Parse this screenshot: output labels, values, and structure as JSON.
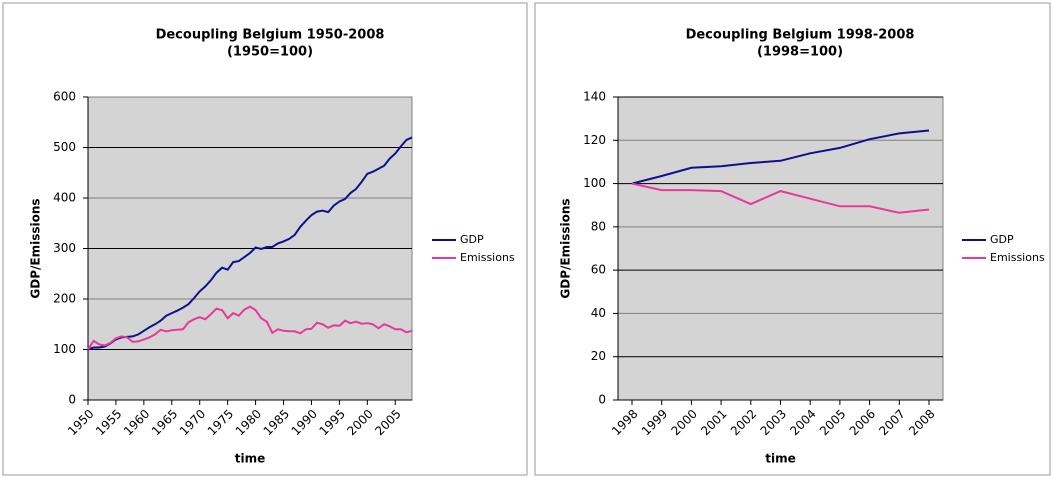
{
  "chart_data": [
    {
      "type": "line",
      "title": "Decoupling Belgium 1950-2008",
      "subtitle": "(1950=100)",
      "y_label": "GDP/Emissions",
      "x_label": "time",
      "x": [
        1950,
        1951,
        1952,
        1953,
        1954,
        1955,
        1956,
        1957,
        1958,
        1959,
        1960,
        1961,
        1962,
        1963,
        1964,
        1965,
        1966,
        1967,
        1968,
        1969,
        1970,
        1971,
        1972,
        1973,
        1974,
        1975,
        1976,
        1977,
        1978,
        1979,
        1980,
        1981,
        1982,
        1983,
        1984,
        1985,
        1986,
        1987,
        1988,
        1989,
        1990,
        1991,
        1992,
        1993,
        1994,
        1995,
        1996,
        1997,
        1998,
        1999,
        2000,
        2001,
        2002,
        2003,
        2004,
        2005,
        2006,
        2007,
        2008
      ],
      "xlim": [
        1950,
        2008
      ],
      "xticks": [
        1950,
        1955,
        1960,
        1965,
        1970,
        1975,
        1980,
        1985,
        1990,
        1995,
        2000,
        2005
      ],
      "ylim": [
        0,
        600
      ],
      "yticks": [
        0,
        100,
        200,
        300,
        400,
        500,
        600
      ],
      "grid": true,
      "series": [
        {
          "name": "GDP",
          "color": "#10108c",
          "values": [
            100,
            104,
            104,
            106,
            112,
            120,
            124,
            125,
            126,
            130,
            137,
            144,
            150,
            157,
            167,
            172,
            177,
            183,
            190,
            202,
            215,
            225,
            237,
            252,
            262,
            258,
            273,
            275,
            283,
            291,
            302,
            299,
            303,
            303,
            310,
            314,
            319,
            327,
            343,
            355,
            366,
            373,
            375,
            372,
            385,
            393,
            398,
            410,
            418,
            432,
            448,
            452,
            458,
            464,
            478,
            488,
            502,
            515,
            520
          ]
        },
        {
          "name": "Emissions",
          "color": "#e6399b",
          "values": [
            100,
            117,
            110,
            108,
            113,
            122,
            126,
            124,
            115,
            116,
            120,
            124,
            130,
            139,
            136,
            138,
            139,
            140,
            154,
            160,
            164,
            160,
            170,
            181,
            178,
            162,
            172,
            167,
            179,
            185,
            178,
            162,
            155,
            133,
            140,
            137,
            136,
            136,
            132,
            140,
            141,
            153,
            150,
            143,
            148,
            147,
            157,
            152,
            155,
            151,
            152,
            150,
            142,
            150,
            146,
            140,
            140,
            134,
            137
          ]
        }
      ]
    },
    {
      "type": "line",
      "title": "Decoupling Belgium 1998-2008",
      "subtitle": "(1998=100)",
      "y_label": "GDP/Emissions",
      "x_label": "time",
      "categories": [
        "1998",
        "1999",
        "2000",
        "2001",
        "2002",
        "2003",
        "2004",
        "2005",
        "2006",
        "2007",
        "2008"
      ],
      "ylim": [
        0,
        140
      ],
      "yticks": [
        0,
        20,
        40,
        60,
        80,
        100,
        120,
        140
      ],
      "grid": true,
      "series": [
        {
          "name": "GDP",
          "color": "#10108c",
          "values": [
            100,
            103.5,
            107.3,
            108,
            109.5,
            110.5,
            114,
            116.5,
            120.5,
            123.2,
            124.5
          ]
        },
        {
          "name": "Emissions",
          "color": "#e6399b",
          "values": [
            100,
            97,
            97,
            96.5,
            90.5,
            96.5,
            93,
            89.5,
            89.5,
            86.5,
            88
          ]
        }
      ]
    }
  ]
}
